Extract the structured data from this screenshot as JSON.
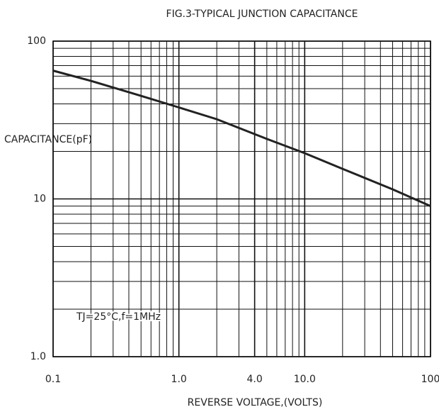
{
  "chart_data": {
    "type": "line",
    "title": "FIG.3-TYPICAL JUNCTION CAPACITANCE",
    "x_label": "REVERSE VOLTAGE,(VOLTS)",
    "y_label": "CAPACITANCE(pF)",
    "annotation": "TJ=25°C,f=1MHz",
    "x": [
      0.1,
      0.2,
      0.5,
      1,
      2,
      5,
      10,
      20,
      50,
      100
    ],
    "series": [
      {
        "name": "Capacitance",
        "color": "#222222",
        "values": [
          65,
          56,
          45,
          38,
          32,
          24,
          19.5,
          15.5,
          11.5,
          9
        ]
      }
    ],
    "xlim": [
      0.1,
      100
    ],
    "ylim": [
      1,
      100
    ],
    "xscale": "log",
    "yscale": "log",
    "xticks": [
      0.1,
      {
        "value": 1,
        "label": "1.0"
      },
      {
        "value": 4,
        "label": "4.0"
      },
      {
        "value": 10,
        "label": "10.0"
      },
      100
    ],
    "yticks": [
      100,
      10,
      {
        "value": 1,
        "label": "1.0"
      }
    ],
    "grid": true,
    "minor_grid": true
  }
}
